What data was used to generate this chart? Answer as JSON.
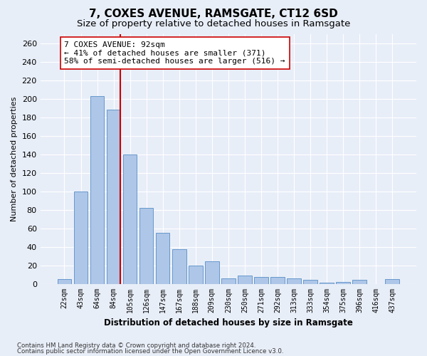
{
  "title": "7, COXES AVENUE, RAMSGATE, CT12 6SD",
  "subtitle": "Size of property relative to detached houses in Ramsgate",
  "xlabel": "Distribution of detached houses by size in Ramsgate",
  "ylabel": "Number of detached properties",
  "bar_labels": [
    "22sqm",
    "43sqm",
    "64sqm",
    "84sqm",
    "105sqm",
    "126sqm",
    "147sqm",
    "167sqm",
    "188sqm",
    "209sqm",
    "230sqm",
    "250sqm",
    "271sqm",
    "292sqm",
    "313sqm",
    "333sqm",
    "354sqm",
    "375sqm",
    "396sqm",
    "416sqm",
    "437sqm"
  ],
  "bar_values": [
    5,
    100,
    203,
    188,
    140,
    82,
    55,
    37,
    20,
    24,
    6,
    9,
    7,
    7,
    6,
    4,
    1,
    2,
    4,
    0,
    5
  ],
  "bar_color": "#aec6e8",
  "bar_edge_color": "#6699cc",
  "vline_color": "#cc0000",
  "vline_x": 3.425,
  "annotation_text": "7 COXES AVENUE: 92sqm\n← 41% of detached houses are smaller (371)\n58% of semi-detached houses are larger (516) →",
  "annotation_box_color": "#ffffff",
  "annotation_box_edge": "#cc0000",
  "annotation_fontsize": 8,
  "footer_line1": "Contains HM Land Registry data © Crown copyright and database right 2024.",
  "footer_line2": "Contains public sector information licensed under the Open Government Licence v3.0.",
  "ylim": [
    0,
    270
  ],
  "yticks": [
    0,
    20,
    40,
    60,
    80,
    100,
    120,
    140,
    160,
    180,
    200,
    220,
    240,
    260
  ],
  "background_color": "#e8eef8",
  "grid_color": "#ffffff",
  "title_fontsize": 11,
  "subtitle_fontsize": 9.5,
  "xlabel_fontsize": 8.5,
  "ylabel_fontsize": 8
}
